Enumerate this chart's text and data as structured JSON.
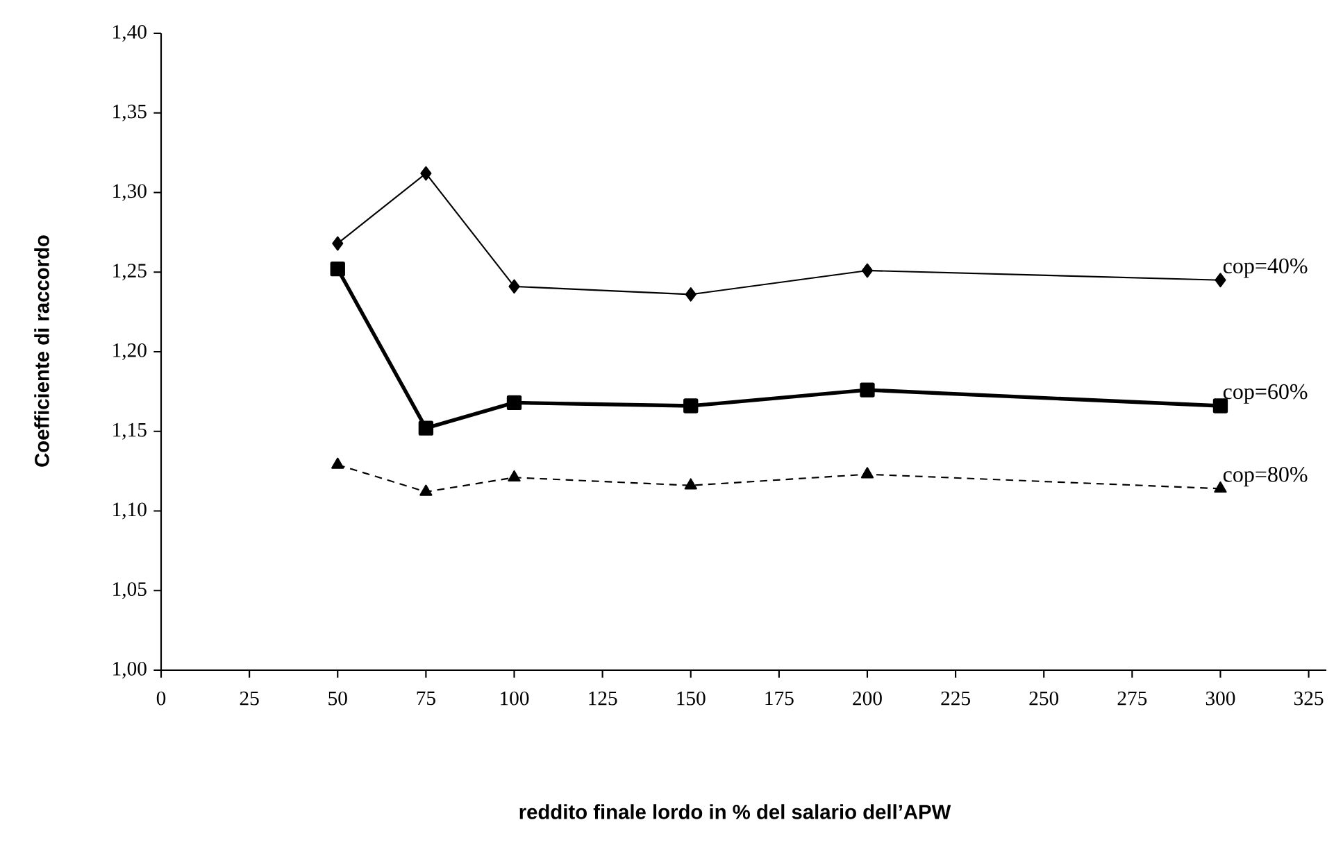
{
  "chart_data": {
    "type": "line",
    "xlabel": "reddito finale lordo in % del salario dell’APW",
    "ylabel": "Coefficiente di raccordo",
    "x": [
      50,
      75,
      100,
      150,
      200,
      300
    ],
    "series": [
      {
        "name": "cop=40%",
        "color": "#000000",
        "marker": "diamond",
        "line_style": "solid",
        "values": [
          1.268,
          1.312,
          1.241,
          1.236,
          1.251,
          1.245
        ]
      },
      {
        "name": "cop=60%",
        "color": "#000000",
        "marker": "square",
        "line_style": "solid",
        "values": [
          1.252,
          1.152,
          1.168,
          1.166,
          1.176,
          1.166
        ]
      },
      {
        "name": "cop=80%",
        "color": "#000000",
        "marker": "triangle",
        "line_style": "dashed",
        "values": [
          1.129,
          1.112,
          1.121,
          1.116,
          1.123,
          1.114
        ]
      }
    ],
    "xlim": [
      0,
      330
    ],
    "xticks": [
      0,
      25,
      50,
      75,
      100,
      125,
      150,
      175,
      200,
      225,
      250,
      275,
      300,
      325
    ],
    "ylim": [
      1.0,
      1.4
    ],
    "yticks": [
      {
        "value": 1.0,
        "label": "1,00"
      },
      {
        "value": 1.05,
        "label": "1,05"
      },
      {
        "value": 1.1,
        "label": "1,10"
      },
      {
        "value": 1.15,
        "label": "1,15"
      },
      {
        "value": 1.2,
        "label": "1,20"
      },
      {
        "value": 1.25,
        "label": "1,25"
      },
      {
        "value": 1.3,
        "label": "1,30"
      },
      {
        "value": 1.35,
        "label": "1,35"
      },
      {
        "value": 1.4,
        "label": "1,40"
      }
    ],
    "grid": false
  }
}
